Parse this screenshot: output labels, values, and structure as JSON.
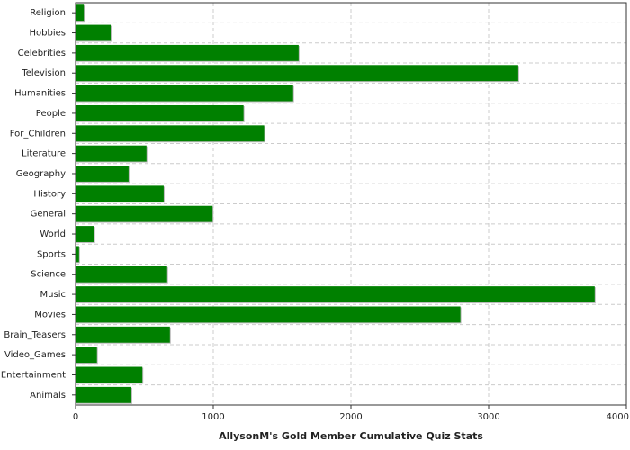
{
  "chart_data": {
    "type": "hbar",
    "x_label": "AllysonM's Gold Member Cumulative Quiz Stats",
    "categories": [
      "Religion",
      "Hobbies",
      "Celebrities",
      "Television",
      "Humanities",
      "People",
      "For_Children",
      "Literature",
      "Geography",
      "History",
      "General",
      "World",
      "Sports",
      "Science",
      "Music",
      "Movies",
      "Brain_Teasers",
      "Video_Games",
      "Entertainment",
      "Animals"
    ],
    "values": [
      60,
      255,
      1620,
      3215,
      1580,
      1220,
      1370,
      515,
      385,
      640,
      995,
      135,
      25,
      665,
      3770,
      2795,
      685,
      155,
      485,
      405
    ],
    "color": "#008000",
    "xlim": [
      0,
      4000
    ],
    "xticks": [
      0,
      1000,
      2000,
      3000,
      4000
    ],
    "grid": true
  }
}
